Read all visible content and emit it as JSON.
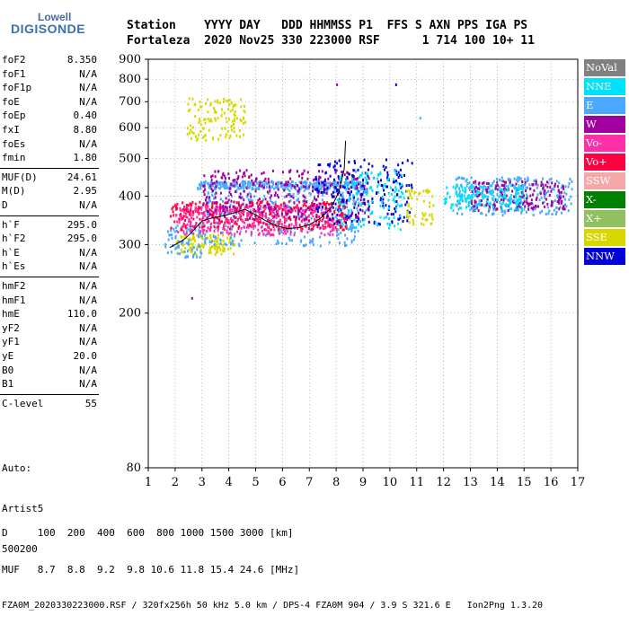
{
  "logo": {
    "top": "Lowell",
    "main": "DIGISONDE"
  },
  "header": {
    "line1": "Station    YYYY DAY   DDD HHMMSS P1  FFS S AXN PPS IGA PS",
    "line2": "Fortaleza  2020 Nov25 330 223000 RSF      1 714 100 10+ 11"
  },
  "params_group1": [
    {
      "name": "foF2",
      "value": "8.350"
    },
    {
      "name": "foF1",
      "value": "N/A"
    },
    {
      "name": "foF1p",
      "value": "N/A"
    },
    {
      "name": "foE",
      "value": "N/A"
    },
    {
      "name": "foEp",
      "value": "0.40"
    },
    {
      "name": "fxI",
      "value": "8.80"
    },
    {
      "name": "foEs",
      "value": "N/A"
    },
    {
      "name": "fmin",
      "value": "1.80"
    }
  ],
  "params_group2": [
    {
      "name": "MUF(D)",
      "value": "24.61"
    },
    {
      "name": "M(D)",
      "value": "2.95"
    },
    {
      "name": "D",
      "value": "N/A"
    }
  ],
  "params_group3": [
    {
      "name": "h`F",
      "value": "295.0"
    },
    {
      "name": "h`F2",
      "value": "295.0"
    },
    {
      "name": "h`E",
      "value": "N/A"
    },
    {
      "name": "h`Es",
      "value": "N/A"
    }
  ],
  "params_group4": [
    {
      "name": "hmF2",
      "value": "N/A"
    },
    {
      "name": "hmF1",
      "value": "N/A"
    },
    {
      "name": "hmE",
      "value": "110.0"
    },
    {
      "name": "yF2",
      "value": "N/A"
    },
    {
      "name": "yF1",
      "value": "N/A"
    },
    {
      "name": "yE",
      "value": "20.0"
    },
    {
      "name": "B0",
      "value": "N/A"
    },
    {
      "name": "B1",
      "value": "N/A"
    }
  ],
  "params_group5": [
    {
      "name": "C-level",
      "value": "55"
    }
  ],
  "auto_block": [
    "Auto:",
    "Artist5",
    "500200"
  ],
  "footer": {
    "line1": "D     100  200  400  600  800 1000 1500 3000 [km]",
    "line2": "MUF   8.7  8.8  9.2  9.8 10.6 11.8 15.4 24.6 [MHz]",
    "line3": "FZA0M_2020330223000.RSF / 320fx256h 50 kHz 5.0 km / DPS-4 FZA0M 904 / 3.9 S 321.6 E   Ion2Png 1.3.20"
  },
  "legend": [
    {
      "label": "NoVal",
      "color": "#808080"
    },
    {
      "label": "NNE",
      "color": "#00e0ff"
    },
    {
      "label": "E",
      "color": "#4aa8ff"
    },
    {
      "label": "W",
      "color": "#a000a0"
    },
    {
      "label": "Vo-",
      "color": "#ff2fa8"
    },
    {
      "label": "Vo+",
      "color": "#ff0040"
    },
    {
      "label": "SSW",
      "color": "#f4a8a8"
    },
    {
      "label": "X-",
      "color": "#008000"
    },
    {
      "label": "X+",
      "color": "#90c060"
    },
    {
      "label": "SSE",
      "color": "#d8d800"
    },
    {
      "label": "NNW",
      "color": "#0000d8"
    }
  ],
  "chart_data": {
    "type": "scatter",
    "title": "",
    "xlabel": "",
    "ylabel": "",
    "xlim": [
      1,
      17
    ],
    "ylim": [
      80,
      900
    ],
    "y_scale": "log",
    "x_ticks": [
      1,
      2,
      3,
      4,
      5,
      6,
      7,
      8,
      9,
      10,
      11,
      12,
      13,
      14,
      15,
      16,
      17
    ],
    "y_ticks": [
      80,
      200,
      300,
      400,
      500,
      600,
      700,
      800,
      900
    ],
    "grid": "dotted",
    "trace": {
      "x": [
        1.8,
        2.0,
        2.3,
        2.6,
        3.0,
        3.4,
        3.8,
        4.2,
        4.6,
        5.0,
        5.4,
        5.8,
        6.2,
        6.6,
        7.0,
        7.4,
        7.8,
        8.1,
        8.3,
        8.35
      ],
      "y": [
        295,
        300,
        308,
        322,
        345,
        352,
        356,
        362,
        370,
        358,
        345,
        335,
        330,
        332,
        338,
        350,
        372,
        410,
        470,
        555
      ]
    },
    "scatter_regions": [
      {
        "series": "SSE",
        "x": [
          2.0,
          4.2
        ],
        "y": [
          285,
          320
        ]
      },
      {
        "series": "SSE",
        "x": [
          2.4,
          4.6
        ],
        "y": [
          560,
          720
        ]
      },
      {
        "series": "E",
        "x": [
          1.6,
          3.0
        ],
        "y": [
          280,
          340
        ]
      },
      {
        "series": "E",
        "x": [
          3.0,
          9.0
        ],
        "y": [
          300,
          420
        ]
      },
      {
        "series": "E",
        "x": [
          2.8,
          9.0
        ],
        "y": [
          420,
          440
        ]
      },
      {
        "series": "Vo+",
        "x": [
          1.8,
          8.4
        ],
        "y": [
          330,
          390
        ]
      },
      {
        "series": "Vo-",
        "x": [
          2.0,
          8.0
        ],
        "y": [
          320,
          380
        ]
      },
      {
        "series": "W",
        "x": [
          3.0,
          9.2
        ],
        "y": [
          350,
          470
        ]
      },
      {
        "series": "NNW",
        "x": [
          7.2,
          10.8
        ],
        "y": [
          340,
          500
        ]
      },
      {
        "series": "NNE",
        "x": [
          8.0,
          10.5
        ],
        "y": [
          330,
          470
        ]
      },
      {
        "series": "E",
        "x": [
          12.4,
          16.8
        ],
        "y": [
          360,
          450
        ]
      },
      {
        "series": "W",
        "x": [
          13.0,
          16.5
        ],
        "y": [
          370,
          440
        ]
      },
      {
        "series": "NNE",
        "x": [
          12.0,
          15.0
        ],
        "y": [
          370,
          430
        ]
      },
      {
        "series": "SSE",
        "x": [
          10.6,
          11.6
        ],
        "y": [
          340,
          420
        ]
      }
    ],
    "isolated_points": [
      {
        "series": "W",
        "x": 2.6,
        "y": 220
      },
      {
        "series": "NNW",
        "x": 10.2,
        "y": 780
      },
      {
        "series": "E",
        "x": 11.1,
        "y": 640
      },
      {
        "series": "W",
        "x": 8.0,
        "y": 780
      }
    ]
  }
}
